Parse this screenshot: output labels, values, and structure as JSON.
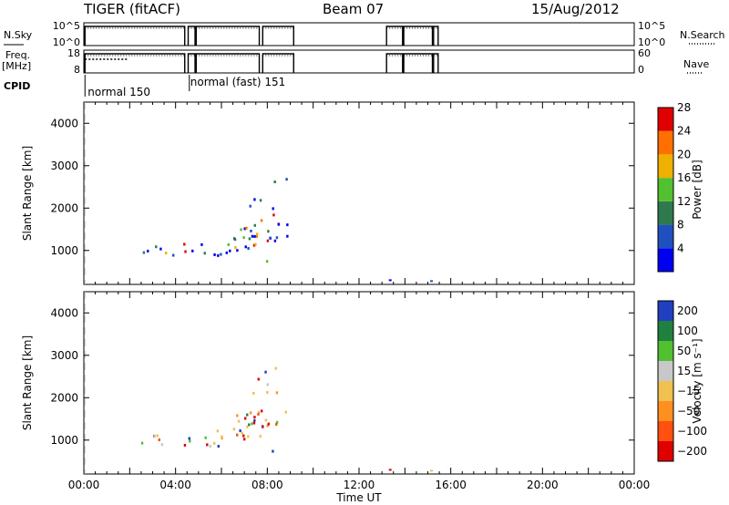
{
  "header": {
    "radar": "TIGER (fitACF)",
    "beam": "Beam 07",
    "date": "15/Aug/2012"
  },
  "side_labels": {
    "nsky": "N.Sky",
    "freq": "Freq.",
    "freq_unit": "[MHz]",
    "cpid": "CPID",
    "nsearch": "N.Search",
    "nave": "Nave"
  },
  "chart_data": [
    {
      "type": "line",
      "panel": "n-sky",
      "yticks_left": [
        "10^5",
        "10^0"
      ],
      "yticks_right": [
        "10^5",
        "10^0"
      ],
      "on_segments_hours": [
        [
          0.05,
          4.4
        ],
        [
          4.55,
          4.85
        ],
        [
          4.9,
          7.65
        ],
        [
          7.8,
          9.15
        ],
        [
          13.2,
          13.9
        ],
        [
          13.95,
          15.2
        ],
        [
          15.25,
          15.45
        ]
      ]
    },
    {
      "type": "line",
      "panel": "freq-nave",
      "yticks_left": [
        "18",
        "8"
      ],
      "yticks_right": [
        "60",
        "0"
      ],
      "on_segments_hours": [
        [
          0.05,
          4.4
        ],
        [
          4.55,
          4.85
        ],
        [
          4.9,
          7.65
        ],
        [
          7.8,
          9.15
        ],
        [
          13.2,
          13.9
        ],
        [
          13.95,
          15.2
        ],
        [
          15.25,
          15.45
        ]
      ],
      "dotted_segment_hours": [
        0.05,
        1.9
      ]
    },
    {
      "type": "table",
      "panel": "cpid",
      "entries": [
        {
          "label": "normal (fast)  151",
          "start_hour": 4.6
        },
        {
          "label": "normal  150",
          "start_hour": 0.05
        }
      ]
    },
    {
      "type": "heatmap",
      "panel": "power",
      "ylabel": "Slant Range [km]",
      "ylim": [
        200,
        4500
      ],
      "yticks": [
        "1000",
        "2000",
        "3000",
        "4000"
      ],
      "xlim": [
        0,
        24
      ],
      "colorbar_label": "Power [dB]",
      "colorbar_ticks": [
        "4",
        "8",
        "12",
        "16",
        "20",
        "24",
        "28"
      ],
      "colors": [
        "#0000f0",
        "#2050c0",
        "#2e7a4e",
        "#52c030",
        "#f0b000",
        "#ff7000",
        "#e00000"
      ]
    },
    {
      "type": "heatmap",
      "panel": "velocity",
      "ylabel": "Slant Range [km]",
      "ylim": [
        200,
        4500
      ],
      "yticks": [
        "1000",
        "2000",
        "3000",
        "4000"
      ],
      "xlim": [
        0,
        24
      ],
      "xticks": [
        "00:00",
        "04:00",
        "08:00",
        "12:00",
        "16:00",
        "20:00",
        "00:00"
      ],
      "xlabel": "Time UT",
      "colorbar_label": "Velocity [m s⁻¹]",
      "colorbar_ticks": [
        "200",
        "100",
        "50",
        "15",
        "−15",
        "−50",
        "−100",
        "−200"
      ],
      "colors": [
        "#2040c0",
        "#208040",
        "#50c030",
        "#c8c8c8",
        "#f0c050",
        "#ff9020",
        "#ff5010",
        "#e00000"
      ]
    }
  ]
}
